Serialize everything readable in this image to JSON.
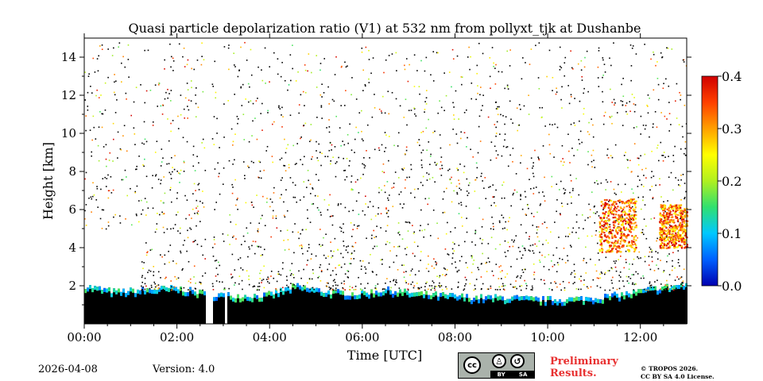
{
  "chart_data": {
    "type": "heatmap",
    "title": "Quasi particle depolarization ratio (V1) at 532 nm from pollyxt_tjk at Dushanbe",
    "xlabel": "Time [UTC]",
    "ylabel": "Height [km]",
    "xlim": [
      0,
      13
    ],
    "ylim": [
      0,
      15
    ],
    "x_ticks": [
      0,
      2,
      4,
      6,
      8,
      10,
      12
    ],
    "x_tick_labels": [
      "00:00",
      "02:00",
      "04:00",
      "06:00",
      "08:00",
      "10:00",
      "12:00"
    ],
    "y_ticks": [
      2,
      4,
      6,
      8,
      10,
      12,
      14
    ],
    "y_tick_labels": [
      "2",
      "4",
      "6",
      "8",
      "10",
      "12",
      "14"
    ],
    "colorbar": {
      "range": [
        0.0,
        0.4
      ],
      "ticks": [
        0.0,
        0.1,
        0.2,
        0.3,
        0.4
      ],
      "tick_labels": [
        "0.0",
        "0.1",
        "0.2",
        "0.3",
        "0.4"
      ],
      "colormap": [
        "#0000b0",
        "#0060ff",
        "#00c8ff",
        "#30e070",
        "#b0f020",
        "#ffff00",
        "#ffa000",
        "#ff4000",
        "#d00000"
      ]
    },
    "features": [
      {
        "name": "boundary layer",
        "t_start": 0.0,
        "t_end": 13.0,
        "top_km": [
          2.0,
          1.7,
          1.8,
          1.9,
          1.6,
          1.5,
          1.5,
          2.0,
          1.7,
          1.6,
          1.8,
          1.6,
          1.5,
          1.4,
          1.4,
          1.3,
          1.3,
          1.4,
          1.6,
          1.9,
          2.1
        ],
        "ratio": 0.05
      },
      {
        "name": "dust layer A",
        "t_start": 11.1,
        "t_end": 11.9,
        "base_km": 3.8,
        "top_km": 6.6,
        "ratio": 0.32
      },
      {
        "name": "dust layer B",
        "t_start": 12.4,
        "t_end": 13.0,
        "base_km": 4.0,
        "top_km": 6.3,
        "ratio": 0.33
      }
    ],
    "data_gaps": [
      [
        2.6,
        2.75
      ],
      [
        3.03,
        3.08
      ]
    ]
  },
  "footer": {
    "date": "2026-04-08",
    "version": "Version: 4.0",
    "preliminary_line1": "Preliminary",
    "preliminary_line2": "Results.",
    "copyright_line1": "© TROPOS 2026.",
    "copyright_line2": "CC BY SA 4.0 License.",
    "cc_label": "cc",
    "by_label": "BY",
    "sa_label": "SA"
  }
}
